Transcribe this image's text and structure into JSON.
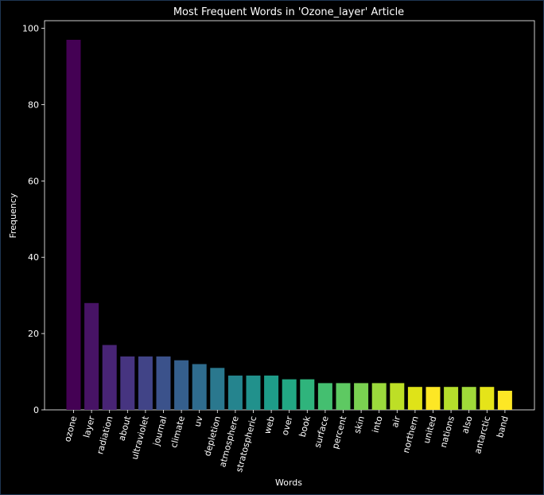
{
  "chart_data": {
    "type": "bar",
    "title": "Most Frequent Words in 'Ozone_layer' Article",
    "xlabel": "Words",
    "ylabel": "Frequency",
    "ylim": [
      0,
      102
    ],
    "yticks": [
      0,
      20,
      40,
      60,
      80,
      100
    ],
    "grid": false,
    "legend": "none",
    "colormap": "viridis",
    "categories": [
      "ozone",
      "layer",
      "radiation",
      "about",
      "ultraviolet",
      "journal",
      "climate",
      "uv",
      "depletion",
      "atmosphere",
      "stratospheric",
      "web",
      "over",
      "book",
      "surface",
      "percent",
      "skin",
      "into",
      "air",
      "northern",
      "united",
      "nations",
      "also",
      "antarctic",
      "band"
    ],
    "values": [
      97,
      28,
      17,
      14,
      14,
      14,
      13,
      12,
      11,
      9,
      9,
      9,
      8,
      8,
      7,
      7,
      7,
      7,
      7,
      6,
      6,
      6,
      6,
      6,
      5
    ],
    "colors": [
      "#440154",
      "#471365",
      "#482475",
      "#463480",
      "#414487",
      "#3b528b",
      "#355f8d",
      "#2f6c8e",
      "#2a788e",
      "#25848e",
      "#21918c",
      "#1e9c89",
      "#22a884",
      "#2fb47c",
      "#44bf70",
      "#5ec962",
      "#7ad151",
      "#9bd93c",
      "#bddf26",
      "#dfe318",
      "#fde725",
      "#b5de2b",
      "#a0da39",
      "#e5e419",
      "#fde725"
    ],
    "background": "#000000",
    "axes_color": "#ffffff"
  }
}
